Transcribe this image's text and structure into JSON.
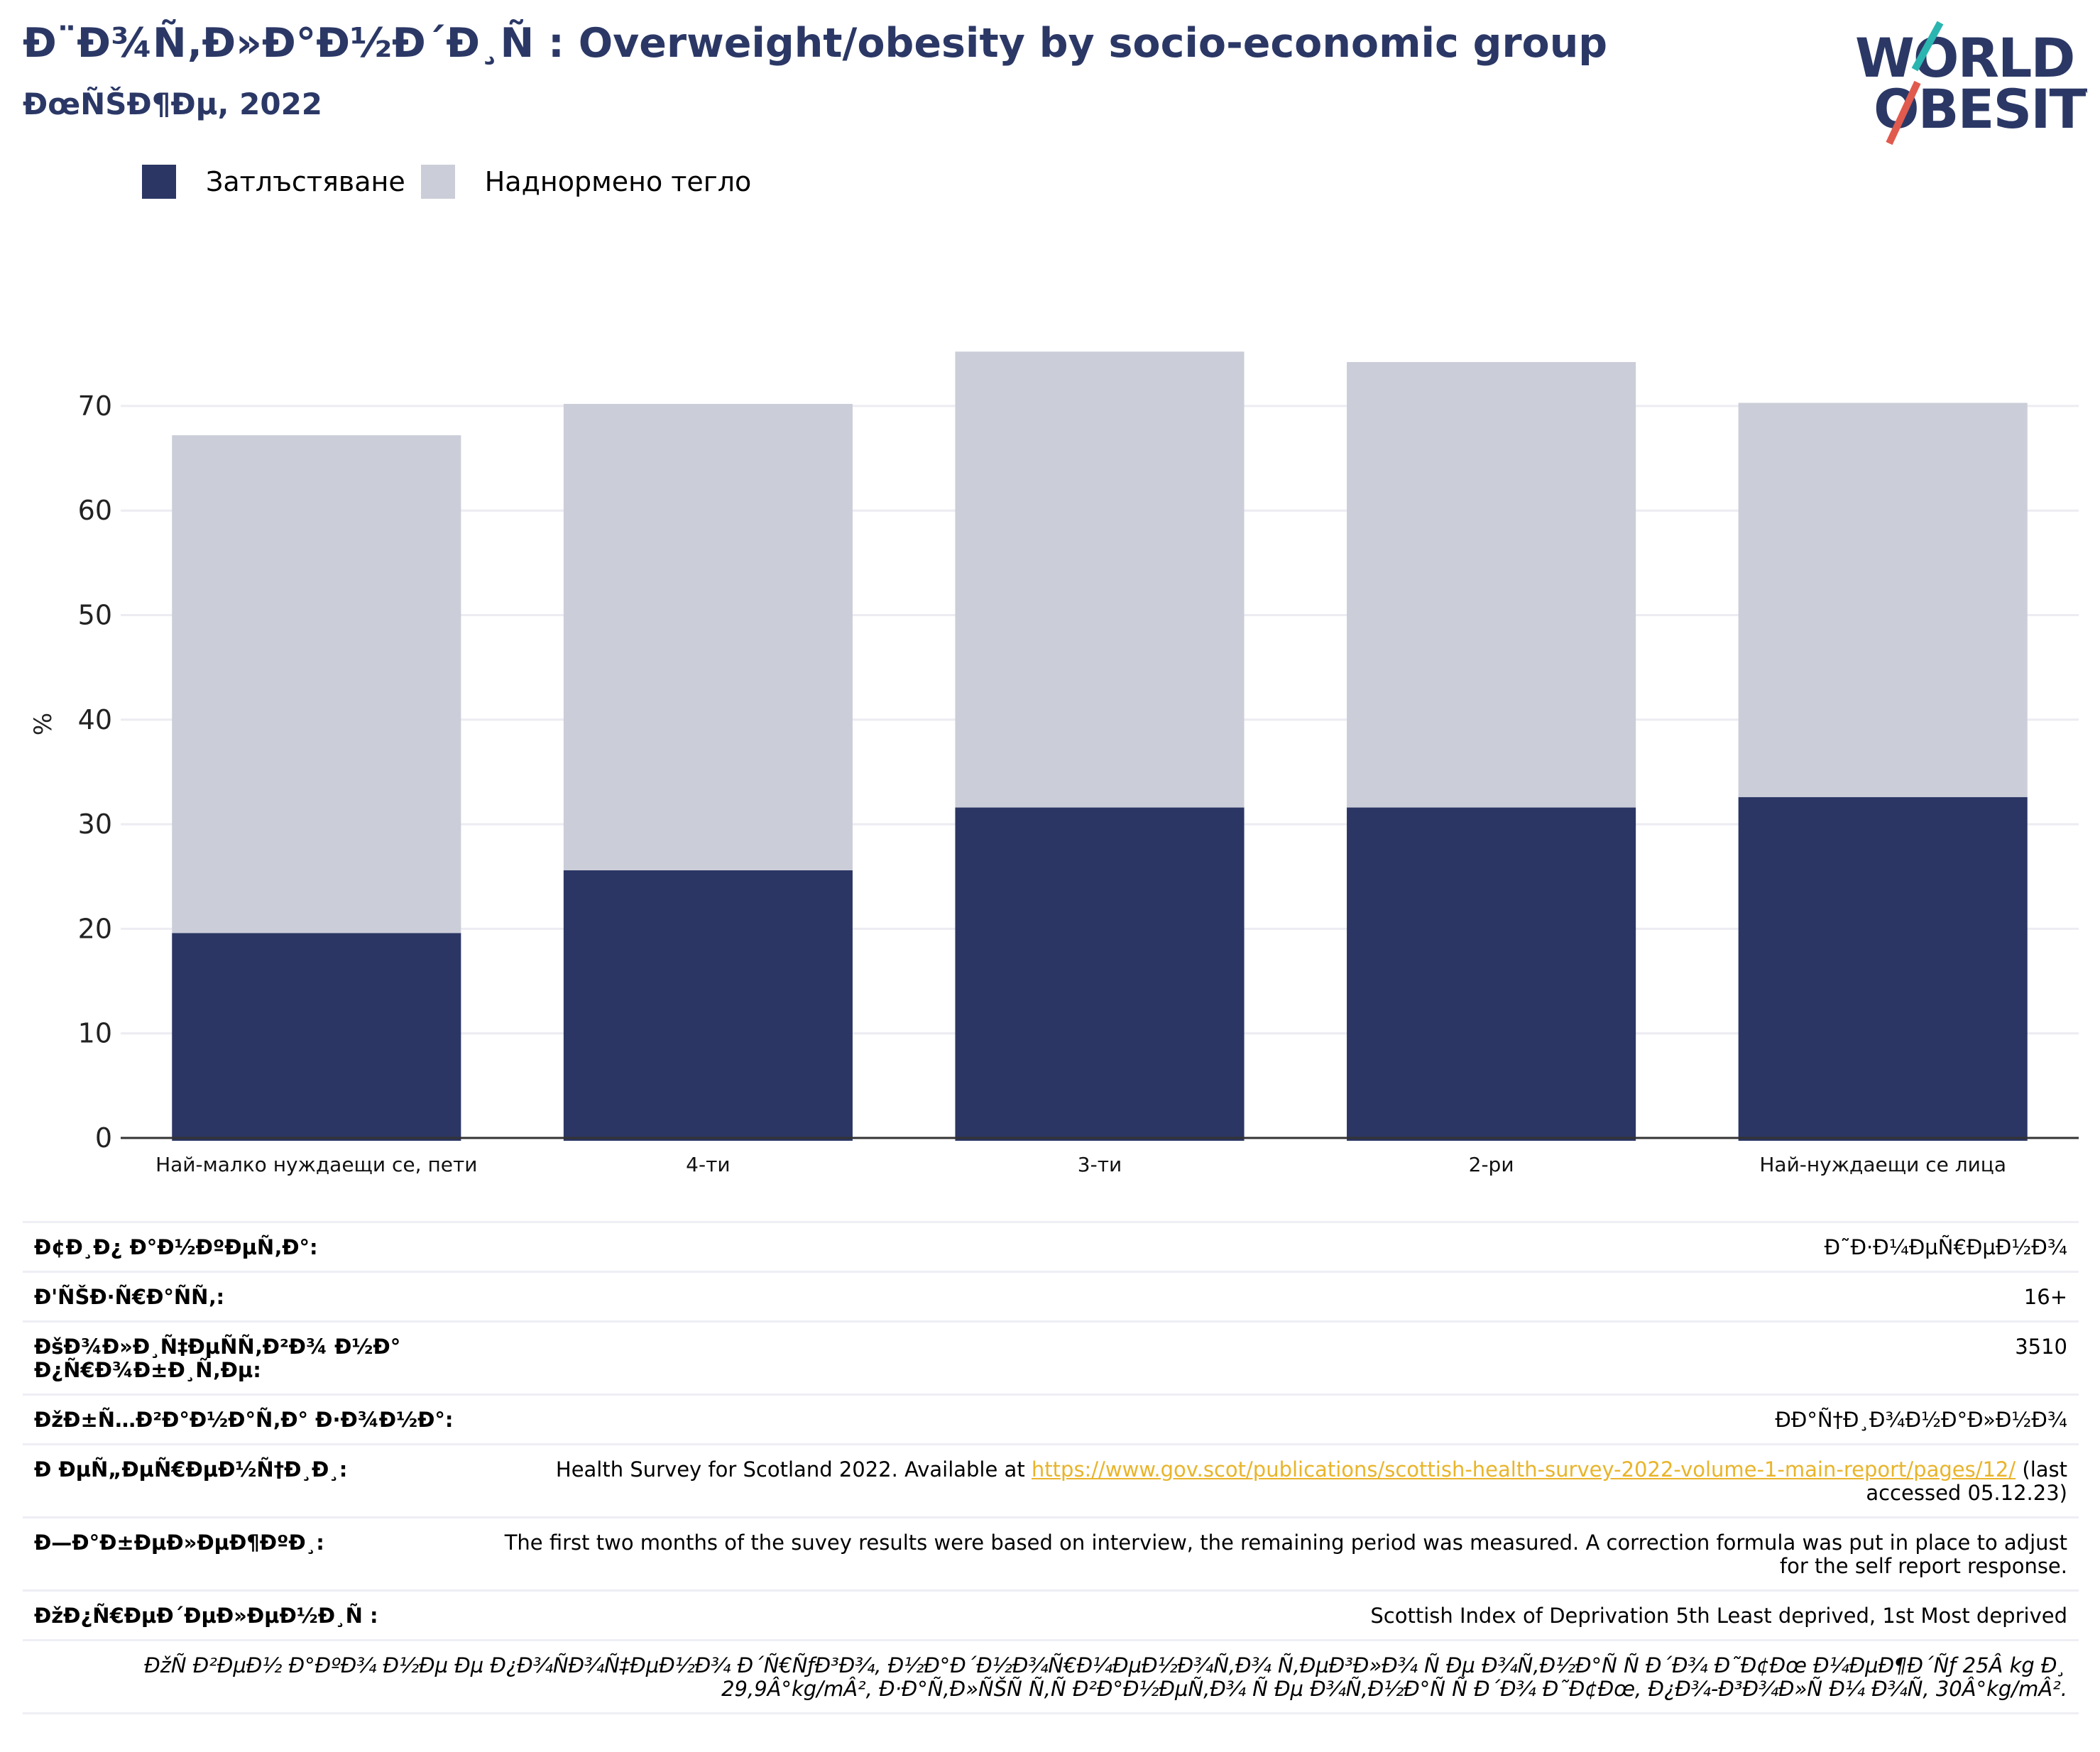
{
  "header": {
    "title": "Ð¨Ð¾Ñ‚Ð»Ð°Ð½Ð´Ð¸Ñ : Overweight/obesity by socio-economic group",
    "subtitle": "ÐœÑŠÐ¶Ðµ, 2022"
  },
  "logo": {
    "line1": "WORLD",
    "line2": "OBESITY"
  },
  "colors": {
    "obesity": "#2b3664",
    "overweight": "#cbcdd8",
    "title": "#2b3866",
    "link": "#e8b42a",
    "grid": "#ececf2",
    "axis": "#333333"
  },
  "chart_data": {
    "type": "bar",
    "stacked": true,
    "categories": [
      "Най-малко нуждаещи се, пети",
      "4-ти",
      "3-ти",
      "2-ри",
      "Най-нуждаещи се лица"
    ],
    "series": [
      {
        "name": "Затлъстяване",
        "values": [
          19.6,
          25.6,
          31.6,
          31.6,
          32.6
        ]
      },
      {
        "name": "Наднормено тегло",
        "values": [
          47.6,
          44.6,
          43.6,
          42.6,
          37.7
        ]
      }
    ],
    "ylabel": "%",
    "ylim": [
      0,
      75
    ],
    "yticks": [
      0,
      10,
      20,
      30,
      40,
      50,
      60,
      70
    ],
    "grid": true,
    "legend": "top-left"
  },
  "meta": {
    "rows": [
      {
        "label": "Ð¢Ð¸Ð¿ Ð°Ð½ÐºÐµÑ‚Ð°:",
        "value": "Ð˜Ð·Ð¼ÐµÑ€ÐµÐ½Ð¾"
      },
      {
        "label": "Ð'ÑŠÐ·Ñ€Ð°ÑÑ‚:",
        "value": "16+"
      },
      {
        "label": "ÐšÐ¾Ð»Ð¸Ñ‡ÐµÑÑ‚Ð²Ð¾ Ð½Ð° Ð¿Ñ€Ð¾Ð±Ð¸Ñ‚Ðµ:",
        "value": "3510"
      },
      {
        "label": "ÐžÐ±Ñ…Ð²Ð°Ð½Ð°Ñ‚Ð° Ð·Ð¾Ð½Ð°:",
        "value": "ÐÐ°Ñ†Ð¸Ð¾Ð½Ð°Ð»Ð½Ð¾"
      }
    ],
    "reference_label": "Ð ÐµÑ„ÐµÑ€ÐµÐ½Ñ†Ð¸Ð¸:",
    "reference_text": "Health Survey for Scotland 2022. Available at ",
    "reference_link": "https://www.gov.scot/publications/scottish-health-survey-2022-volume-1-main-report/pages/12/",
    "reference_suffix": " (last accessed 05.12.23)",
    "notes_label": "Ð—Ð°Ð±ÐµÐ»ÐµÐ¶ÐºÐ¸:",
    "notes_text": "The first two months of the suvey results were based on interview, the remaining period was measured. A correction formula was put in place to adjust for the self report response.",
    "definitions_label": "ÐžÐ¿Ñ€ÐµÐ´ÐµÐ»ÐµÐ½Ð¸Ñ :",
    "definitions_text": "Scottish Index of Deprivation 5th Least deprived, 1st Most deprived",
    "footnote": "ÐžÑ Ð²ÐµÐ½ Ð°ÐºÐ¾ Ð½Ðµ Ðµ Ð¿Ð¾ÑÐ¾Ñ‡ÐµÐ½Ð¾ Ð´Ñ€ÑƒÐ³Ð¾, Ð½Ð°Ð´Ð½Ð¾Ñ€Ð¼ÐµÐ½Ð¾Ñ‚Ð¾ Ñ‚ÐµÐ³Ð»Ð¾ Ñ Ðµ Ð¾Ñ‚Ð½Ð°Ñ Ñ Ð´Ð¾ Ð˜Ð¢Ðœ Ð¼ÐµÐ¶Ð´Ñƒ 25Â kg Ð¸ 29,9Â°kg/mÂ², Ð·Ð°Ñ‚Ð»ÑŠÑ Ñ‚Ñ Ð²Ð°Ð½ÐµÑ‚Ð¾ Ñ Ðµ Ð¾Ñ‚Ð½Ð°Ñ Ñ  Ð´Ð¾ Ð˜Ð¢Ðœ, Ð¿Ð¾-Ð³Ð¾Ð»Ñ Ð¼ Ð¾Ñ‚ 30Â°kg/mÂ²."
  }
}
